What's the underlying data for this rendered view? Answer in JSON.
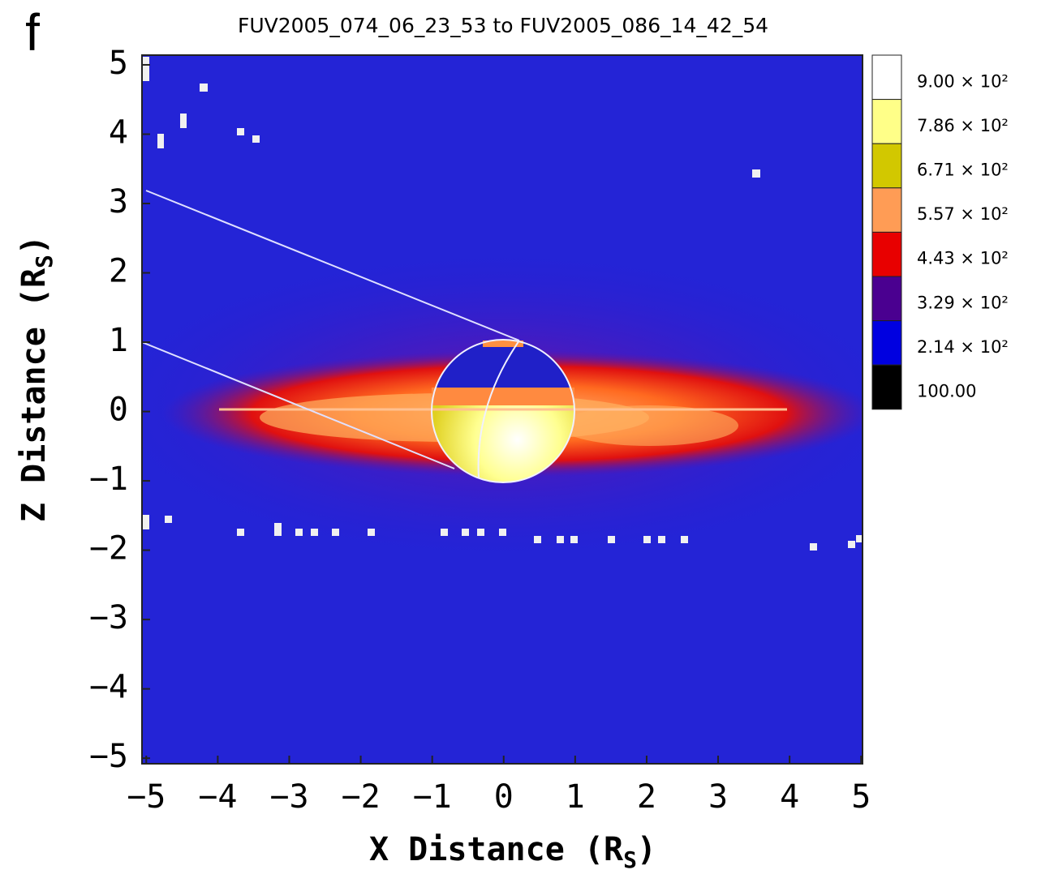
{
  "chart_data": {
    "type": "heatmap",
    "panel_label": "f",
    "title": "FUV2005_074_06_23_53 to FUV2005_086_14_42_54",
    "xlabel": [
      "X Distance (R",
      "S",
      ")"
    ],
    "ylabel": [
      "Z Distance (R",
      "S",
      ")"
    ],
    "xlim": [
      -5.06,
      5.02
    ],
    "ylim": [
      -5.08,
      5.14
    ],
    "xticks": [
      {
        "value": -5,
        "label": "−5"
      },
      {
        "value": -4,
        "label": "−4"
      },
      {
        "value": -3,
        "label": "−3"
      },
      {
        "value": -2,
        "label": "−2"
      },
      {
        "value": -1,
        "label": "−1"
      },
      0,
      1,
      2,
      3,
      4,
      5
    ],
    "yticks": [
      {
        "value": -5,
        "label": "−5"
      },
      {
        "value": -4,
        "label": "−4"
      },
      {
        "value": -3,
        "label": "−3"
      },
      {
        "value": -2,
        "label": "−2"
      },
      {
        "value": -1,
        "label": "−1"
      },
      0,
      1,
      2,
      3,
      4,
      5
    ],
    "colorbar": {
      "levels": [
        {
          "value": 900,
          "label": "9.00 × 10²"
        },
        {
          "value": 786,
          "label": "7.86 × 10²"
        },
        {
          "value": 671,
          "label": "6.71 × 10²"
        },
        {
          "value": 557,
          "label": "5.57 × 10²"
        },
        {
          "value": 443,
          "label": "4.43 × 10²"
        },
        {
          "value": 329,
          "label": "3.29 × 10²"
        },
        {
          "value": 214,
          "label": "2.14 × 10²"
        },
        {
          "value": 100,
          "label": "100.00"
        }
      ],
      "colors": [
        "#ffffff",
        "#ffff88",
        "#d2c800",
        "#ff9c55",
        "#e80000",
        "#4a0090",
        "#0000e0",
        "#000000"
      ]
    }
  }
}
